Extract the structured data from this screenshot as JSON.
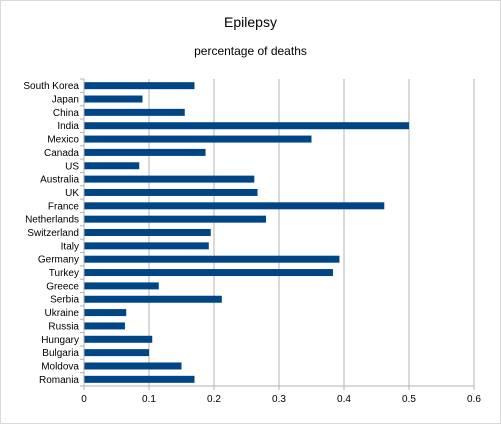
{
  "chart_data": {
    "type": "bar",
    "orientation": "horizontal",
    "title": "Epilepsy",
    "subtitle": "percentage of deaths",
    "xlabel": "",
    "ylabel": "",
    "categories": [
      "South Korea",
      "Japan",
      "China",
      "India",
      "Mexico",
      "Canada",
      "US",
      "Australia",
      "UK",
      "France",
      "Netherlands",
      "Switzerland",
      "Italy",
      "Germany",
      "Turkey",
      "Greece",
      "Serbia",
      "Ukraine",
      "Russia",
      "Hungary",
      "Bulgaria",
      "Moldova",
      "Romania"
    ],
    "values": [
      0.17,
      0.09,
      0.155,
      0.5,
      0.35,
      0.187,
      0.085,
      0.262,
      0.267,
      0.462,
      0.28,
      0.195,
      0.192,
      0.393,
      0.383,
      0.115,
      0.212,
      0.065,
      0.063,
      0.105,
      0.1,
      0.15,
      0.17
    ],
    "xlim": [
      0,
      0.6
    ],
    "xticks": [
      "0",
      "0.1",
      "0.2",
      "0.3",
      "0.4",
      "0.5",
      "0.6"
    ],
    "grid": "vertical",
    "legend": "none",
    "colors": {
      "bar": "#004586",
      "grid": "#b3b3b3",
      "axis": "#b3b3b3"
    }
  }
}
